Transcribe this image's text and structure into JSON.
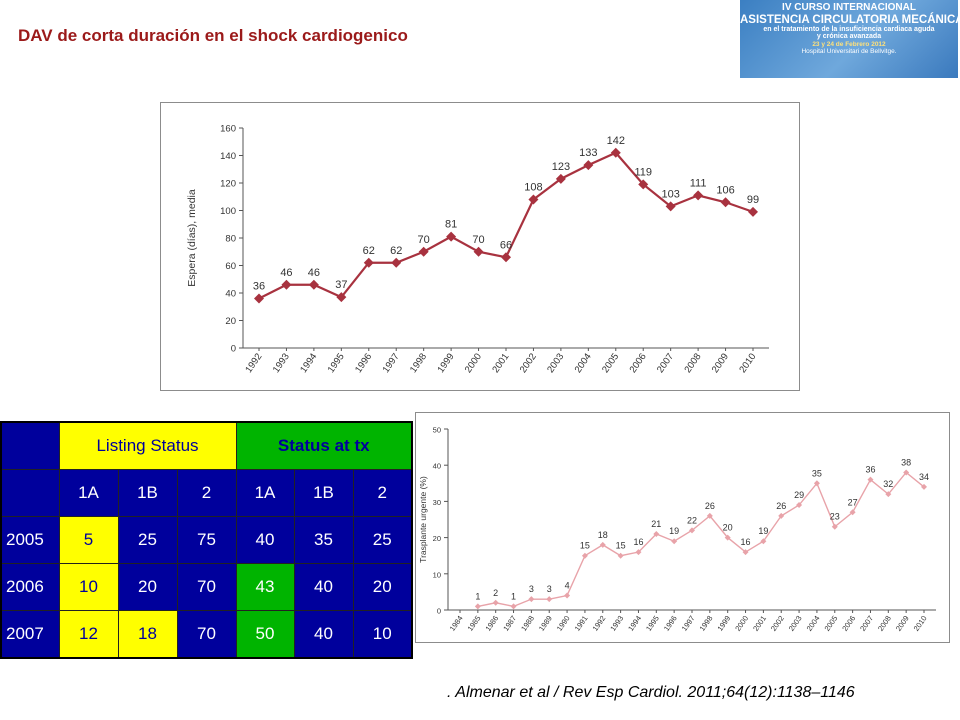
{
  "header": {
    "title": "DAV de corta duración en el shock cardiogenico"
  },
  "banner": {
    "lines": [
      "IV CURSO INTERNACIONAL",
      "ASISTENCIA CIRCULATORIA MECÁNICA",
      "en el tratamiento de la insuficiencia cardiaca aguda",
      "y crónica avanzada",
      "23 y 24 de Febrero 2012",
      "Hospital Universitari de Bellvitge."
    ]
  },
  "chart_data": [
    {
      "type": "line",
      "title": "",
      "xlabel": "",
      "ylabel": "Espera (días), media",
      "ylim": [
        0,
        160
      ],
      "yticks": [
        0,
        20,
        40,
        60,
        80,
        100,
        120,
        140,
        160
      ],
      "categories": [
        "1992",
        "1993",
        "1994",
        "1995",
        "1996",
        "1997",
        "1998",
        "1999",
        "2000",
        "2001",
        "2002",
        "2003",
        "2004",
        "2005",
        "2006",
        "2007",
        "2008",
        "2009",
        "2010"
      ],
      "values": [
        36,
        46,
        46,
        37,
        62,
        62,
        70,
        81,
        70,
        66,
        108,
        123,
        133,
        142,
        119,
        103,
        111,
        106,
        99
      ],
      "color": "#a8323f",
      "grid": false
    },
    {
      "type": "line",
      "title": "",
      "xlabel": "",
      "ylabel": "Trasplante urgente (%)",
      "ylim": [
        0,
        50
      ],
      "yticks": [
        0,
        10,
        20,
        30,
        40,
        50
      ],
      "categories": [
        "1984",
        "1985",
        "1986",
        "1987",
        "1988",
        "1989",
        "1990",
        "1991",
        "1992",
        "1993",
        "1994",
        "1995",
        "1996",
        "1997",
        "1998",
        "1999",
        "2000",
        "2001",
        "2002",
        "2003",
        "2004",
        "2005",
        "2006",
        "2007",
        "2008",
        "2009",
        "2010"
      ],
      "values": [
        null,
        1,
        2,
        1,
        3,
        3,
        4,
        15,
        18,
        15,
        16,
        21,
        19,
        22,
        26,
        20,
        16,
        19,
        26,
        29,
        35,
        23,
        27,
        36,
        32,
        38,
        34
      ],
      "color": "#e8a3a9",
      "grid": false
    }
  ],
  "table": {
    "group_headers": [
      "Listing Status",
      "Status at tx"
    ],
    "sub_headers": [
      "1A",
      "1B",
      "2",
      "1A",
      "1B",
      "2"
    ],
    "rows": [
      {
        "year": "2005",
        "values": [
          "5",
          "25",
          "75",
          "40",
          "35",
          "25"
        ]
      },
      {
        "year": "2006",
        "values": [
          "10",
          "20",
          "70",
          "43",
          "40",
          "20"
        ]
      },
      {
        "year": "2007",
        "values": [
          "12",
          "18",
          "70",
          "50",
          "40",
          "10"
        ]
      }
    ]
  },
  "footer": {
    "reference": ". Almenar et al / Rev Esp Cardiol. 2011;64(12):1138–1146"
  }
}
